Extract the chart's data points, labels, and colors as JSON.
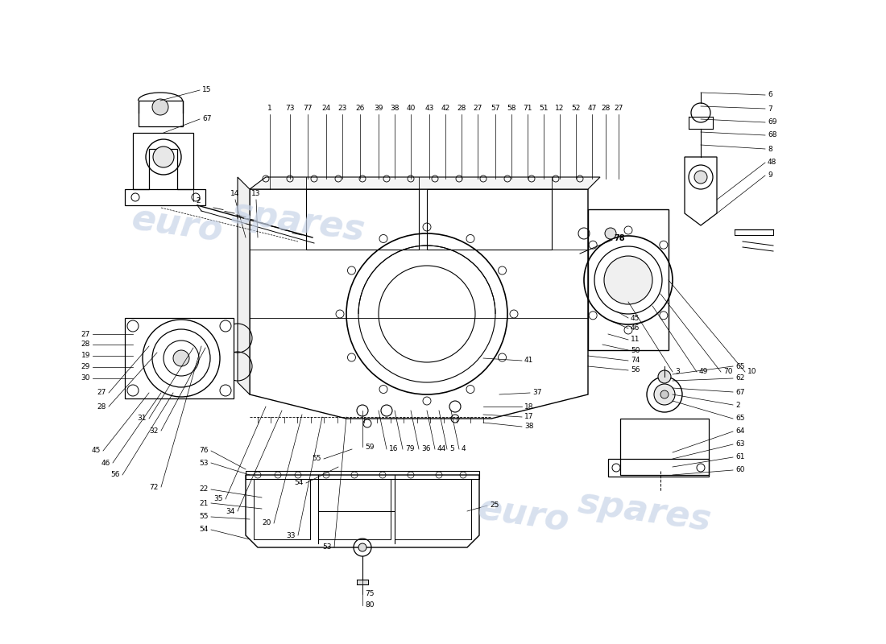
{
  "background_color": "#ffffff",
  "watermark_text": "eurospares",
  "watermark_color": "#c8d4e8",
  "line_color": "#000000"
}
